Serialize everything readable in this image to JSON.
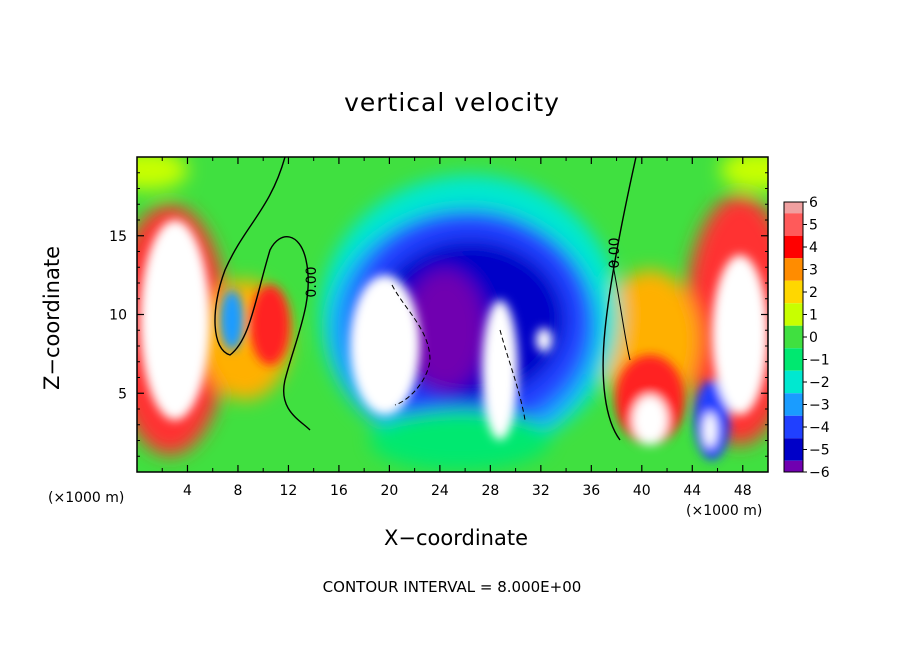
{
  "chart_data": {
    "type": "heatmap",
    "title": "vertical velocity",
    "xlabel": "X−coordinate",
    "ylabel": "Z−coordinate",
    "x_unit": "(×1000 m)",
    "x_ticks": [
      "4",
      "8",
      "12",
      "16",
      "20",
      "24",
      "28",
      "32",
      "36",
      "40",
      "44",
      "48"
    ],
    "y_ticks": [
      "5",
      "10",
      "15"
    ],
    "xlim": [
      0,
      50
    ],
    "ylim": [
      0,
      20
    ],
    "colorbar": {
      "levels": [
        "6",
        "5",
        "4",
        "3",
        "2",
        "1",
        "0",
        "−1",
        "−2",
        "−3",
        "−4",
        "−5",
        "−6"
      ],
      "colors": [
        "#f0a0a0",
        "#ff5a5a",
        "#ff0000",
        "#ff8c00",
        "#ffd700",
        "#c8ff00",
        "#40e040",
        "#00e870",
        "#00e8d0",
        "#1a9cff",
        "#2040ff",
        "#0000c8",
        "#7000b0"
      ]
    },
    "contour_labels": [
      "0.00",
      "0.00"
    ],
    "contour_interval_text": "CONTOUR INTERVAL = 8.000E+00"
  }
}
